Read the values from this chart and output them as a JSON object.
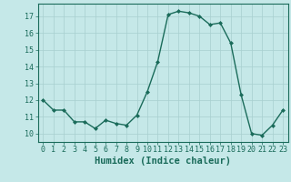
{
  "x": [
    0,
    1,
    2,
    3,
    4,
    5,
    6,
    7,
    8,
    9,
    10,
    11,
    12,
    13,
    14,
    15,
    16,
    17,
    18,
    19,
    20,
    21,
    22,
    23
  ],
  "y": [
    12.0,
    11.4,
    11.4,
    10.7,
    10.7,
    10.3,
    10.8,
    10.6,
    10.5,
    11.1,
    12.5,
    14.3,
    17.1,
    17.3,
    17.2,
    17.0,
    16.5,
    16.6,
    15.4,
    12.3,
    10.0,
    9.9,
    10.5,
    11.4
  ],
  "line_color": "#1a6b5a",
  "marker": "D",
  "marker_size": 2.0,
  "background_color": "#c5e8e8",
  "grid_color": "#a8cfcf",
  "xlabel": "Humidex (Indice chaleur)",
  "xlabel_fontsize": 7.5,
  "ytick_labels": [
    "10",
    "11",
    "12",
    "13",
    "14",
    "15",
    "16",
    "17"
  ],
  "ytick_vals": [
    10,
    11,
    12,
    13,
    14,
    15,
    16,
    17
  ],
  "xtick_vals": [
    0,
    1,
    2,
    3,
    4,
    5,
    6,
    7,
    8,
    9,
    10,
    11,
    12,
    13,
    14,
    15,
    16,
    17,
    18,
    19,
    20,
    21,
    22,
    23
  ],
  "ylim": [
    9.5,
    17.75
  ],
  "xlim": [
    -0.5,
    23.5
  ],
  "tick_fontsize": 6.0,
  "linewidth": 1.0
}
